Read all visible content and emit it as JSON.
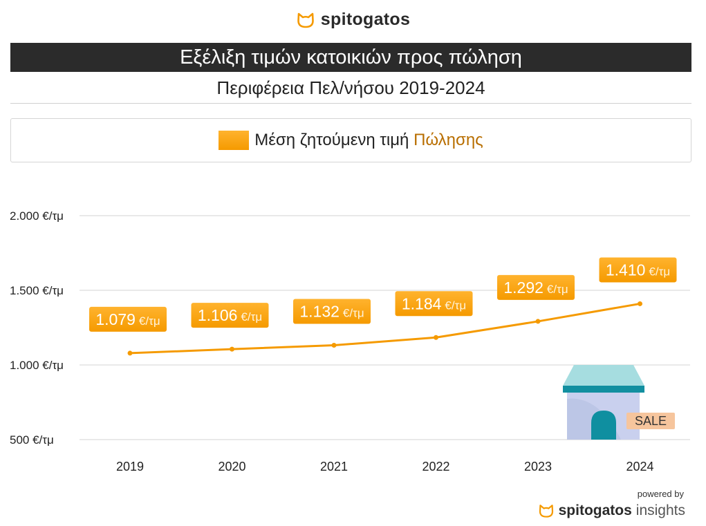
{
  "brand": {
    "name": "spitogatos",
    "logo_icon": "cat-head-icon",
    "accent": "#f59a00"
  },
  "header": {
    "title": "Εξέλιξη τιμών κατοικιών προς πώληση",
    "subtitle": "Περιφέρεια Πελ/νήσου 2019-2024"
  },
  "legend": {
    "text": "Μέση ζητούμενη τιμή ",
    "accent_text": "Πώλησης",
    "swatch_color": "#f59a00"
  },
  "footer": {
    "powered_by": "powered by",
    "brand_name": "spitogatos",
    "brand_suffix": "insights"
  },
  "illustration": {
    "icon": "shop-for-sale-icon",
    "label": "SALE"
  },
  "chart_data": {
    "type": "line",
    "x": [
      "2019",
      "2020",
      "2021",
      "2022",
      "2023",
      "2024"
    ],
    "series": [
      {
        "values": [
          1079,
          1106,
          1132,
          1184,
          1292,
          1410
        ],
        "labels_value": [
          "1.079",
          "1.106",
          "1.132",
          "1.184",
          "1.292",
          "1.410"
        ],
        "label_unit": "€/τμ",
        "color": "#f59a00"
      }
    ],
    "ylim": [
      500,
      2000
    ],
    "yticks": [
      500,
      1000,
      1500,
      2000
    ],
    "ytick_labels": [
      "500 €/τμ",
      "1.000 €/τμ",
      "1.500 €/τμ",
      "2.000 €/τμ"
    ],
    "grid": true,
    "legend_position": "top"
  }
}
